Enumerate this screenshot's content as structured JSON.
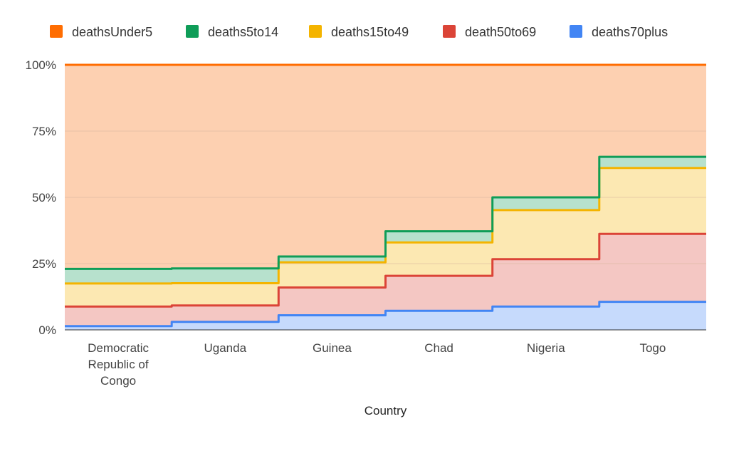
{
  "chart_data": {
    "type": "area",
    "subtype": "stepped-stacked-percent",
    "title": "",
    "xlabel": "Country",
    "ylabel": "",
    "categories": [
      "Democratic Republic of Congo",
      "Uganda",
      "Guinea",
      "Chad",
      "Nigeria",
      "Togo"
    ],
    "category_label_lines": [
      [
        "Democratic",
        "Republic of",
        "Congo"
      ],
      [
        "Uganda"
      ],
      [
        "Guinea"
      ],
      [
        "Chad"
      ],
      [
        "Nigeria"
      ],
      [
        "Togo"
      ]
    ],
    "ylim": [
      0,
      100
    ],
    "yticks": [
      0,
      25,
      50,
      75,
      100
    ],
    "ytick_labels": [
      "0%",
      "25%",
      "50%",
      "75%",
      "100%"
    ],
    "legend_position": "top",
    "grid": true,
    "series": [
      {
        "name": "deathsUnder5",
        "color": "#ff6d01",
        "fill": "#fdd0b1",
        "values": [
          77.0,
          76.8,
          72.3,
          62.8,
          50.0,
          34.7
        ]
      },
      {
        "name": "deaths5to14",
        "color": "#0f9d58",
        "fill": "#b7e1cd",
        "values": [
          5.5,
          5.6,
          2.2,
          4.2,
          4.8,
          4.2
        ]
      },
      {
        "name": "deaths15to49",
        "color": "#f4b400",
        "fill": "#fce8b2",
        "values": [
          8.7,
          8.4,
          9.5,
          12.6,
          18.5,
          24.9
        ]
      },
      {
        "name": "death50to69",
        "color": "#db4437",
        "fill": "#f4c7c3",
        "values": [
          7.4,
          6.2,
          10.5,
          13.2,
          17.9,
          25.6
        ]
      },
      {
        "name": "deaths70plus",
        "color": "#4285f4",
        "fill": "#c6dafc",
        "values": [
          1.4,
          3.0,
          5.5,
          7.2,
          8.8,
          10.6
        ]
      }
    ]
  }
}
